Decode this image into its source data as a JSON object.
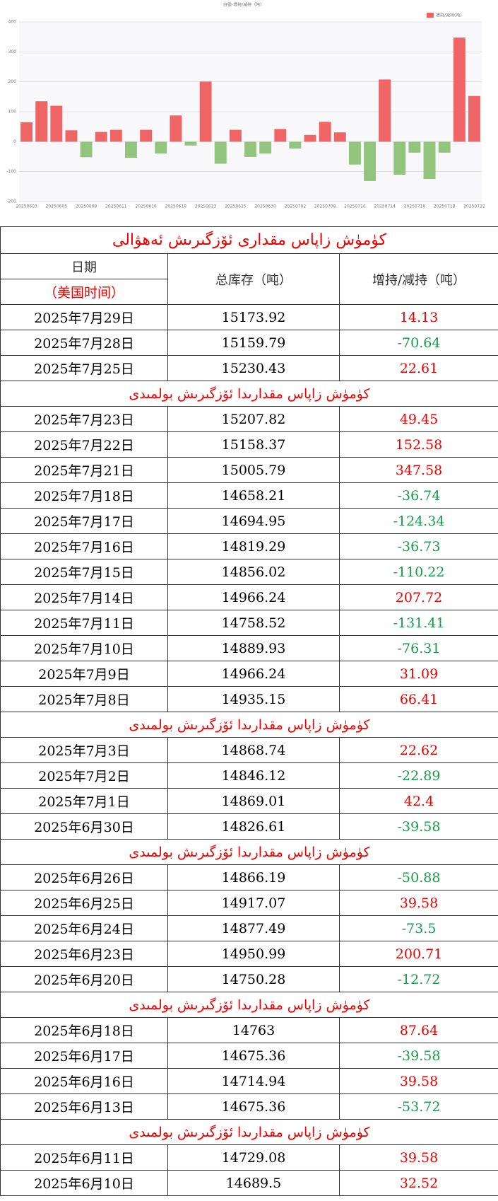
{
  "chart_data": {
    "type": "bar",
    "title": "白银-增持/减持（吨）",
    "categories": [
      "20250603",
      null,
      "20250605",
      null,
      "20250609",
      null,
      "20250611",
      null,
      "20250616",
      null,
      "20250618",
      null,
      "20250623",
      null,
      "20250625",
      null,
      "20250630",
      null,
      "20250702",
      null,
      "20250708",
      null,
      "20250710",
      null,
      "20250714",
      null,
      "20250716",
      null,
      "20250718",
      null,
      "20250722"
    ],
    "series": [
      {
        "name": "增持/减持(吨)",
        "color": "#ef6464",
        "negative_color": "#93c47d",
        "values": [
          65,
          135,
          120,
          38,
          -52,
          32.52,
          39.58,
          -53.72,
          39.58,
          -39.58,
          87.64,
          -12.72,
          200.71,
          -73.5,
          39.58,
          -50.88,
          -39.58,
          42.4,
          -22.89,
          22.62,
          66.41,
          31.09,
          -76.31,
          -131.41,
          207.72,
          -110.22,
          -36.73,
          -124.34,
          -36.74,
          347.58,
          152.58
        ]
      }
    ],
    "ylim": [
      -200,
      400
    ],
    "yticks": [
      -200,
      -100,
      0,
      100,
      200,
      300,
      400
    ],
    "grid": true,
    "legend": "top-right"
  },
  "table": {
    "title": "كۈمۈش زاپاس مقدارى ئۆزگىرىش ئەھۋالى",
    "header": {
      "date": "日期",
      "date_note": "（美国时间）",
      "total": "总库存（吨）",
      "change": "增持/减持（吨）"
    },
    "rows": [
      {
        "date": "2025年7月29日",
        "total": 15173.92,
        "change": 14.13
      },
      {
        "date": "2025年7月28日",
        "total": 15159.79,
        "change": -70.64
      },
      {
        "date": "2025年7月25日",
        "total": 15230.43,
        "change": 22.61
      },
      {
        "note": "كۈمۈش زاپاس مقدارىدا ئۆزگىرىش بولمىدى"
      },
      {
        "date": "2025年7月23日",
        "total": 15207.82,
        "change": 49.45
      },
      {
        "date": "2025年7月22日",
        "total": 15158.37,
        "change": 152.58
      },
      {
        "date": "2025年7月21日",
        "total": 15005.79,
        "change": 347.58
      },
      {
        "date": "2025年7月18日",
        "total": 14658.21,
        "change": -36.74
      },
      {
        "date": "2025年7月17日",
        "total": 14694.95,
        "change": -124.34
      },
      {
        "date": "2025年7月16日",
        "total": 14819.29,
        "change": -36.73
      },
      {
        "date": "2025年7月15日",
        "total": 14856.02,
        "change": -110.22
      },
      {
        "date": "2025年7月14日",
        "total": 14966.24,
        "change": 207.72
      },
      {
        "date": "2025年7月11日",
        "total": 14758.52,
        "change": -131.41
      },
      {
        "date": "2025年7月10日",
        "total": 14889.93,
        "change": -76.31
      },
      {
        "date": "2025年7月9日",
        "total": 14966.24,
        "change": 31.09
      },
      {
        "date": "2025年7月8日",
        "total": 14935.15,
        "change": 66.41
      },
      {
        "note": "كۈمۈش زاپاس مقدارىدا ئۆزگىرىش بولمىدى"
      },
      {
        "date": "2025年7月3日",
        "total": 14868.74,
        "change": 22.62
      },
      {
        "date": "2025年7月2日",
        "total": 14846.12,
        "change": -22.89
      },
      {
        "date": "2025年7月1日",
        "total": 14869.01,
        "change": 42.4
      },
      {
        "date": "2025年6月30日",
        "total": 14826.61,
        "change": -39.58
      },
      {
        "note": "كۈمۈش زاپاس مقدارىدا ئۆزگىرىش بولمىدى"
      },
      {
        "date": "2025年6月26日",
        "total": 14866.19,
        "change": -50.88
      },
      {
        "date": "2025年6月25日",
        "total": 14917.07,
        "change": 39.58
      },
      {
        "date": "2025年6月24日",
        "total": 14877.49,
        "change": -73.5
      },
      {
        "date": "2025年6月23日",
        "total": 14950.99,
        "change": 200.71
      },
      {
        "date": "2025年6月20日",
        "total": 14750.28,
        "change": -12.72
      },
      {
        "note": "كۈمۈش زاپاس مقدارىدا ئۆزگىرىش بولمىدى"
      },
      {
        "date": "2025年6月18日",
        "total": 14763,
        "change": 87.64
      },
      {
        "date": "2025年6月17日",
        "total": 14675.36,
        "change": -39.58
      },
      {
        "date": "2025年6月16日",
        "total": 14714.94,
        "change": 39.58
      },
      {
        "date": "2025年6月13日",
        "total": 14675.36,
        "change": -53.72
      },
      {
        "note": "كۈمۈش زاپاس مقدارىدا ئۆزگىرىش بولمىدى"
      },
      {
        "date": "2025年6月11日",
        "total": 14729.08,
        "change": 39.58
      },
      {
        "date": "2025年6月10日",
        "total": 14689.5,
        "change": 32.52
      }
    ]
  }
}
